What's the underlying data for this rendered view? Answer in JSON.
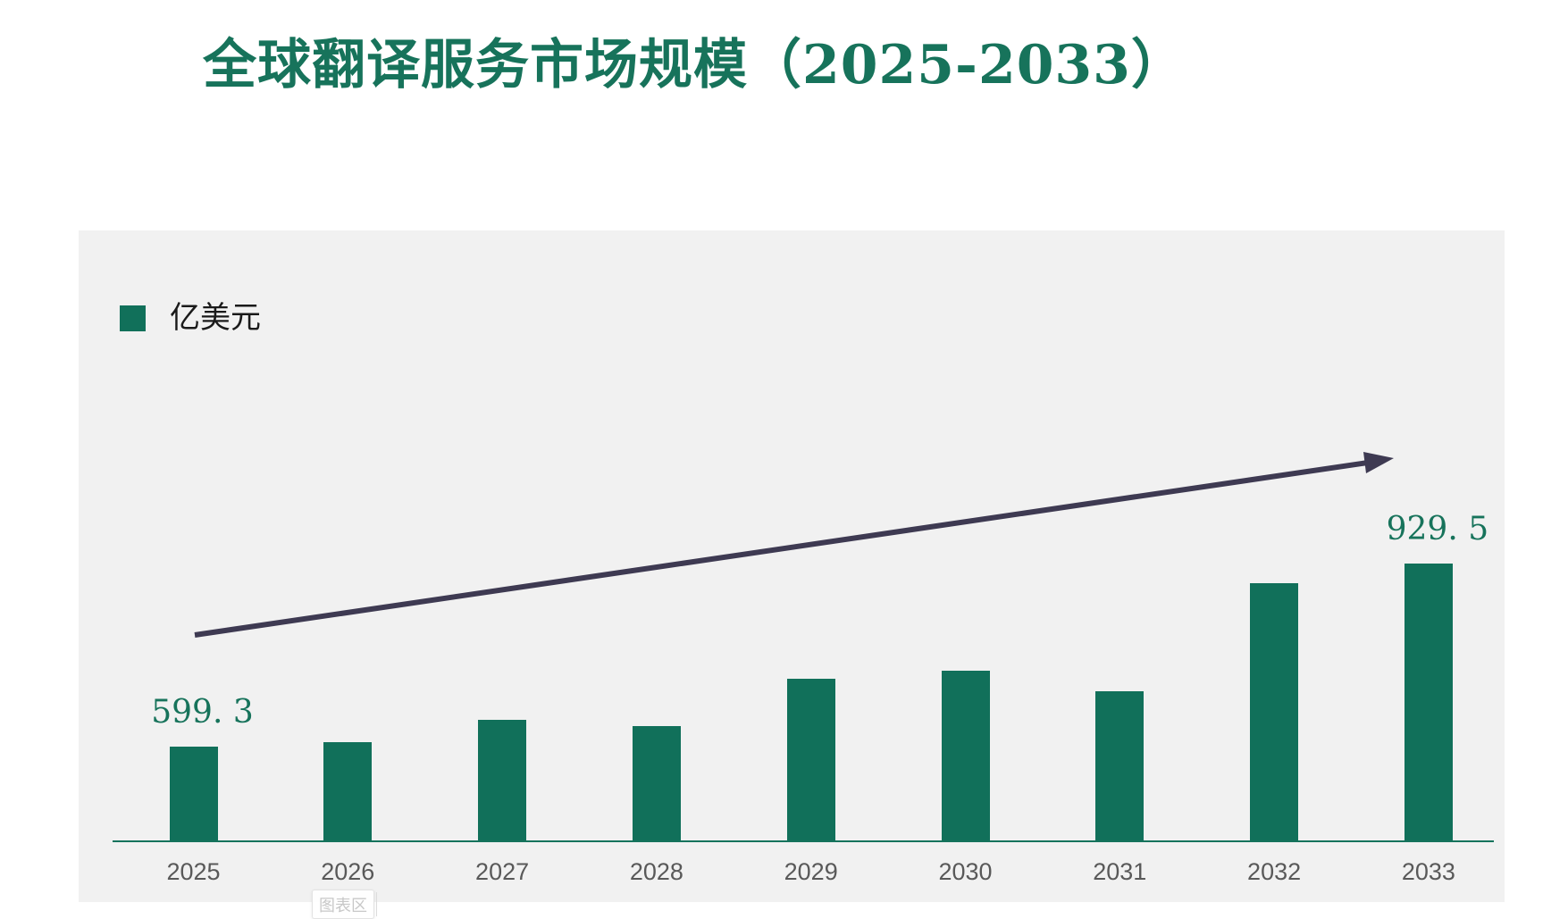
{
  "title": "全球翻译服务市场规模（2025-2033）",
  "legend": {
    "label": "亿美元",
    "swatch_color": "#11705a"
  },
  "tooltip": {
    "text": "图表区"
  },
  "colors": {
    "bar": "#11705a",
    "title_text": "#17735b",
    "axis_line": "#15735c",
    "trend_arrow": "#3e3a52",
    "plot_background": "#f1f1f1",
    "year_label": "#595959",
    "data_label": "#17735b",
    "tooltip_text": "#c8c8c8"
  },
  "chart_data": {
    "type": "bar",
    "title": "全球翻译服务市场规模（2025-2033）",
    "categories": [
      "2025",
      "2026",
      "2027",
      "2028",
      "2029",
      "2030",
      "2031",
      "2032",
      "2033"
    ],
    "series": [
      {
        "name": "亿美元",
        "values": [
          599.3,
          608,
          648,
          637,
          722,
          737,
          700,
          894,
          929.5
        ]
      }
    ],
    "data_labels": [
      "599. 3",
      "",
      "",
      "",
      "",
      "",
      "",
      "",
      "929. 5"
    ],
    "xlabel": "",
    "ylabel": "亿美元",
    "ylim": [
      430,
      1000
    ],
    "grid": false,
    "legend_position": "top-left",
    "value_axis_visible": false,
    "annotations": [
      {
        "type": "arrow",
        "note": "upward trend arrow from 2025 area to 2033 area"
      }
    ]
  }
}
